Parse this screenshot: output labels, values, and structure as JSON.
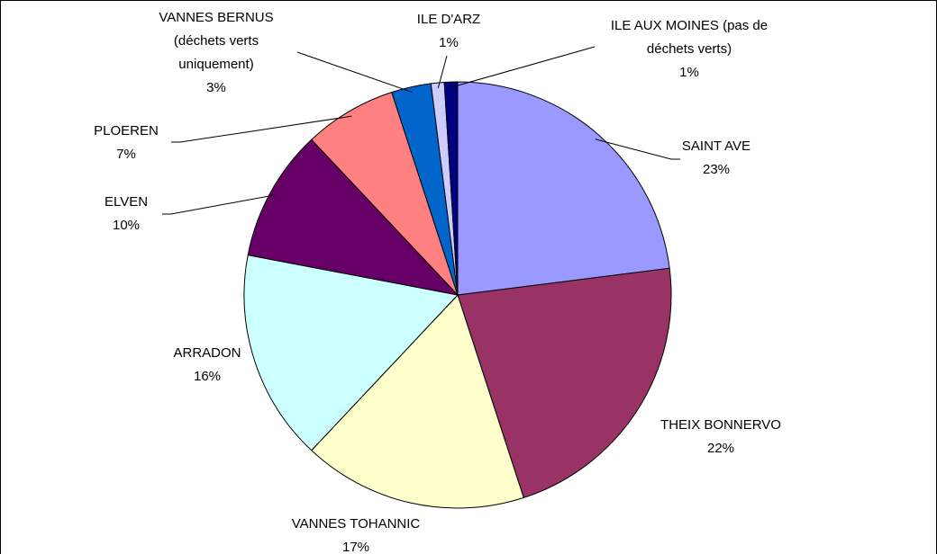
{
  "chart_data": {
    "type": "pie",
    "categories": [
      "SAINT AVE",
      "THEIX BONNERVO",
      "VANNES TOHANNIC",
      "ARRADON",
      "ELVEN",
      "PLOEREN",
      "VANNES BERNUS (déchets verts uniquement)",
      "ILE D'ARZ",
      "ILE AUX MOINES (pas de déchets verts)"
    ],
    "values": [
      23,
      22,
      17,
      16,
      10,
      7,
      3,
      1,
      1
    ],
    "value_labels": [
      "23%",
      "22%",
      "17%",
      "16%",
      "10%",
      "7%",
      "3%",
      "1%",
      "1%"
    ],
    "colors": [
      "#9999ff",
      "#993366",
      "#ffffcc",
      "#ccffff",
      "#660066",
      "#ff8080",
      "#0066cc",
      "#ccccff",
      "#000080"
    ]
  }
}
